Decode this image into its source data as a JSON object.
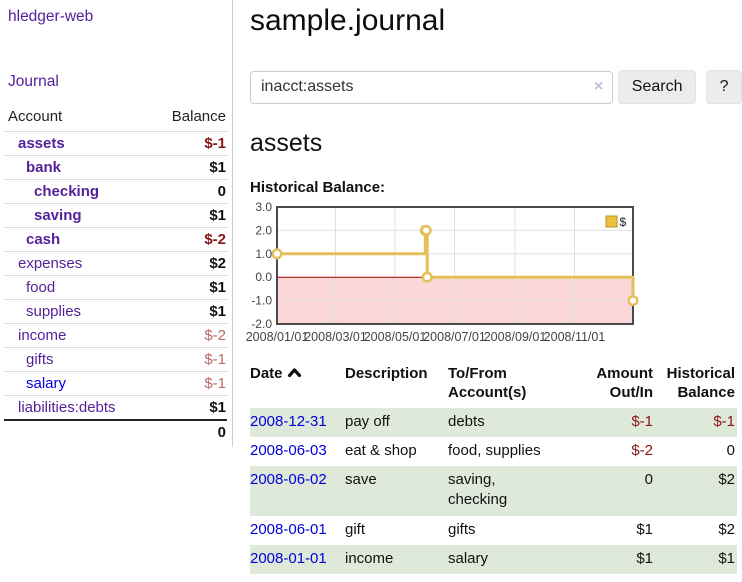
{
  "app": {
    "brand": "hledger-web",
    "nav": {
      "journal": "Journal"
    }
  },
  "sidebar": {
    "header": {
      "account": "Account",
      "balance": "Balance"
    },
    "accounts": [
      {
        "name": "assets",
        "balance": "$-1",
        "depth": 1,
        "name_style": "acct-bold",
        "bal_style": "amt-negstrong"
      },
      {
        "name": "bank",
        "balance": "$1",
        "depth": 2,
        "name_style": "acct-bold",
        "bal_style": "amt-pos"
      },
      {
        "name": "checking",
        "balance": "0",
        "depth": 3,
        "name_style": "acct-bold",
        "bal_style": "amt-pos"
      },
      {
        "name": "saving",
        "balance": "$1",
        "depth": 3,
        "name_style": "acct-bold",
        "bal_style": "amt-pos"
      },
      {
        "name": "cash",
        "balance": "$-2",
        "depth": 2,
        "name_style": "acct-bold",
        "bal_style": "amt-negstrong"
      },
      {
        "name": "expenses",
        "balance": "$2",
        "depth": 1,
        "name_style": "",
        "bal_style": "amt-pos"
      },
      {
        "name": "food",
        "balance": "$1",
        "depth": 2,
        "name_style": "",
        "bal_style": "amt-pos"
      },
      {
        "name": "supplies",
        "balance": "$1",
        "depth": 2,
        "name_style": "",
        "bal_style": "amt-pos"
      },
      {
        "name": "income",
        "balance": "$-2",
        "depth": 1,
        "name_style": "",
        "bal_style": "amt-rosy"
      },
      {
        "name": "gifts",
        "balance": "$-1",
        "depth": 2,
        "name_style": "",
        "bal_style": "amt-rosy"
      },
      {
        "name": "salary",
        "balance": "$-1",
        "depth": 2,
        "name_style": "acct-blue",
        "bal_style": "amt-rosy"
      },
      {
        "name": "liabilities:debts",
        "balance": "$1",
        "depth": 1,
        "name_style": "",
        "bal_style": "amt-pos"
      }
    ],
    "total": "0"
  },
  "main": {
    "title": "sample.journal",
    "search": {
      "value": "inacct:assets",
      "clear": "×",
      "search_label": "Search",
      "help_label": "?"
    },
    "account_heading": "assets",
    "chart_title": "Historical Balance:"
  },
  "chart_data": {
    "type": "line",
    "step": true,
    "title": "Historical Balance",
    "series": [
      {
        "name": "$",
        "points": [
          {
            "date": "2008-01-01",
            "value": 1
          },
          {
            "date": "2008-06-01",
            "value": 2
          },
          {
            "date": "2008-06-02",
            "value": 2
          },
          {
            "date": "2008-06-03",
            "value": 0
          },
          {
            "date": "2008-12-31",
            "value": -1
          }
        ]
      }
    ],
    "xrange": [
      "2008-01-01",
      "2008-12-31"
    ],
    "ylim": [
      -2,
      3
    ],
    "yticks": [
      "3.0",
      "2.0",
      "1.0",
      "0.0",
      "-1.0",
      "-2.0"
    ],
    "xticks": [
      {
        "label": "2008/01/01",
        "date": "2008-01-01"
      },
      {
        "label": "2008/03/01",
        "date": "2008-03-01"
      },
      {
        "label": "2008/05/01",
        "date": "2008-05-01"
      },
      {
        "label": "2008/07/01",
        "date": "2008-07-01"
      },
      {
        "label": "2008/09/01",
        "date": "2008-09-01"
      },
      {
        "label": "2008/11/01",
        "date": "2008-11-01"
      }
    ],
    "legend": "$",
    "grid": true,
    "legend_position": "top-right",
    "colors": {
      "line": "#e4c05a",
      "negative_fill": "#fbd7d7",
      "zero_line": "#a00000",
      "grid": "#e0e0e0",
      "border": "#4a4a4a",
      "legend_fill": "#eac23e",
      "legend_border": "#b5962c"
    }
  },
  "register": {
    "columns": {
      "date": "Date",
      "description": "Description",
      "to_from": "To/From Account(s)",
      "amount": "Amount Out/In",
      "balance": "Historical Balance"
    },
    "rows": [
      {
        "date": "2008-12-31",
        "description": "pay off",
        "to_from": "debts",
        "amount": "$-1",
        "balance": "$-1",
        "amount_style": "neg",
        "balance_style": "neg",
        "shade": true
      },
      {
        "date": "2008-06-03",
        "description": "eat & shop",
        "to_from": "food, supplies",
        "amount": "$-2",
        "balance": "0",
        "amount_style": "neg",
        "balance_style": "plain",
        "shade": false
      },
      {
        "date": "2008-06-02",
        "description": "save",
        "to_from": "saving,\nchecking",
        "amount": "0",
        "balance": "$2",
        "amount_style": "plain",
        "balance_style": "plain",
        "shade": true
      },
      {
        "date": "2008-06-01",
        "description": "gift",
        "to_from": "gifts",
        "amount": "$1",
        "balance": "$2",
        "amount_style": "plain",
        "balance_style": "plain",
        "shade": false
      },
      {
        "date": "2008-01-01",
        "description": "income",
        "to_from": "salary",
        "amount": "$1",
        "balance": "$1",
        "amount_style": "plain",
        "balance_style": "plain",
        "shade": true
      }
    ]
  }
}
